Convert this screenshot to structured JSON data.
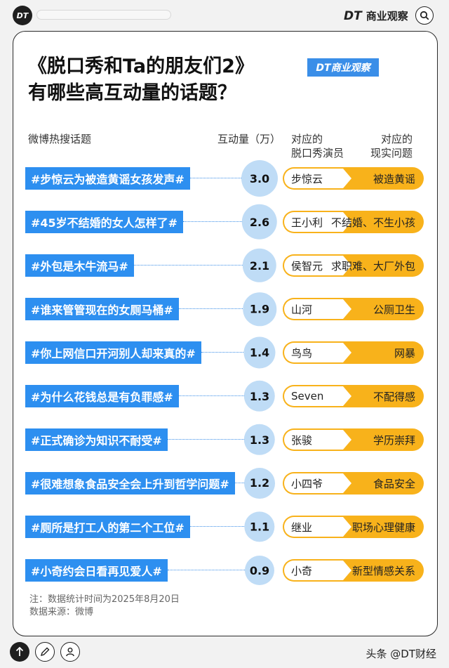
{
  "header": {
    "logo_text": "DT",
    "brand_logo": "DT",
    "brand_name": "商业观察",
    "search_icon": "magnifier"
  },
  "title": {
    "line1": "《脱口秀和Ta的朋友们2》",
    "line2": "有哪些高互动量的话题？",
    "badge": "DT商业观察"
  },
  "columns": {
    "topic": "微博热搜话题",
    "count": "互动量（万）",
    "actor": "对应的\n脱口秀演员",
    "issue": "对应的\n现实问题"
  },
  "chart_data": {
    "type": "table",
    "value_unit": "万",
    "rows": [
      {
        "topic": "#步惊云为被造黄谣女孩发声#",
        "value": 3.0,
        "value_label": "3.0",
        "actor": "步惊云",
        "issue": "被造黄谣"
      },
      {
        "topic": "#45岁不结婚的女人怎样了#",
        "value": 2.6,
        "value_label": "2.6",
        "actor": "王小利",
        "issue": "不结婚、不生小孩"
      },
      {
        "topic": "#外包是木牛流马#",
        "value": 2.1,
        "value_label": "2.1",
        "actor": "侯智元",
        "issue": "求职难、大厂外包"
      },
      {
        "topic": "#谁来管管现在的女厕马桶#",
        "value": 1.9,
        "value_label": "1.9",
        "actor": "山河",
        "issue": "公厕卫生"
      },
      {
        "topic": "#你上网信口开河别人却来真的#",
        "value": 1.4,
        "value_label": "1.4",
        "actor": "鸟鸟",
        "issue": "网暴"
      },
      {
        "topic": "#为什么花钱总是有负罪感#",
        "value": 1.3,
        "value_label": "1.3",
        "actor": "Seven",
        "issue": "不配得感"
      },
      {
        "topic": "#正式确诊为知识不耐受#",
        "value": 1.3,
        "value_label": "1.3",
        "actor": "张骏",
        "issue": "学历崇拜"
      },
      {
        "topic": "#很难想象食品安全会上升到哲学问题#",
        "value": 1.2,
        "value_label": "1.2",
        "actor": "小四爷",
        "issue": "食品安全"
      },
      {
        "topic": "#厕所是打工人的第二个工位#",
        "value": 1.1,
        "value_label": "1.1",
        "actor": "继业",
        "issue": "职场心理健康"
      },
      {
        "topic": "#小奇约会日看再见爱人#",
        "value": 0.9,
        "value_label": "0.9",
        "actor": "小奇",
        "issue": "新型情感关系"
      }
    ]
  },
  "notes": {
    "note1": "注：数据统计时间为2025年8月20日",
    "note2": "数据来源：微博"
  },
  "footer": {
    "credit": "头条 @DT财经",
    "up_icon": "arrow-up",
    "edit_icon": "pencil",
    "user_icon": "user"
  },
  "colors": {
    "topic_bg": "#2d8ff0",
    "bubble": "#bfdcf6",
    "pill": "#f8b21b",
    "badge": "#3a8ee8"
  }
}
